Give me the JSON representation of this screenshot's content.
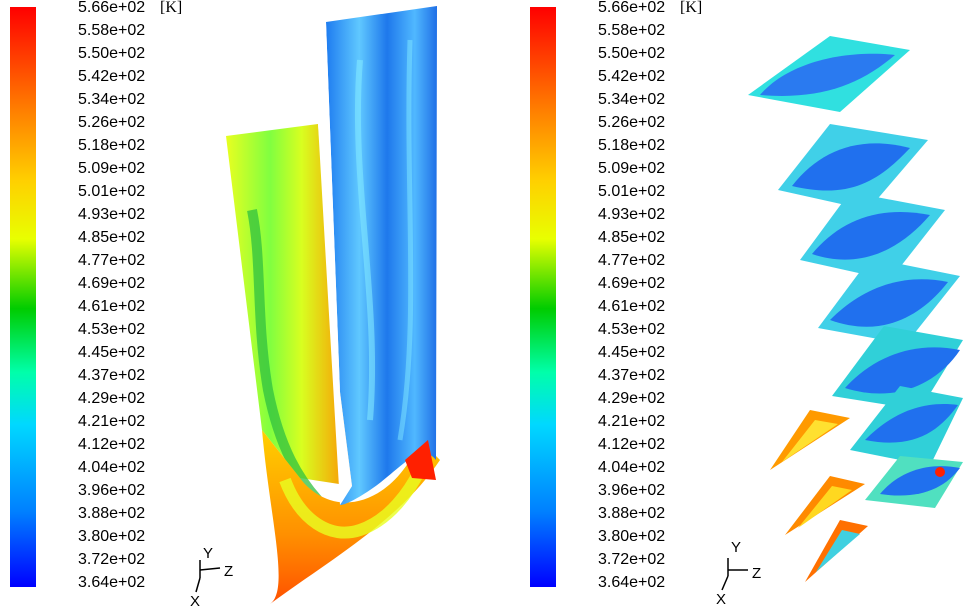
{
  "panels": [
    {
      "unit": "[K]",
      "ticks": [
        "5.66e+02",
        "5.58e+02",
        "5.50e+02",
        "5.42e+02",
        "5.34e+02",
        "5.26e+02",
        "5.18e+02",
        "5.09e+02",
        "5.01e+02",
        "4.93e+02",
        "4.85e+02",
        "4.77e+02",
        "4.69e+02",
        "4.61e+02",
        "4.53e+02",
        "4.45e+02",
        "4.37e+02",
        "4.29e+02",
        "4.21e+02",
        "4.12e+02",
        "4.04e+02",
        "3.96e+02",
        "3.88e+02",
        "3.80e+02",
        "3.72e+02",
        "3.64e+02"
      ],
      "axes": {
        "y": "Y",
        "z": "Z",
        "x": "X"
      }
    },
    {
      "unit": "[K]",
      "ticks": [
        "5.66e+02",
        "5.58e+02",
        "5.50e+02",
        "5.42e+02",
        "5.34e+02",
        "5.26e+02",
        "5.18e+02",
        "5.09e+02",
        "5.01e+02",
        "4.93e+02",
        "4.85e+02",
        "4.77e+02",
        "4.69e+02",
        "4.61e+02",
        "4.53e+02",
        "4.45e+02",
        "4.37e+02",
        "4.29e+02",
        "4.21e+02",
        "4.12e+02",
        "4.04e+02",
        "3.96e+02",
        "3.88e+02",
        "3.80e+02",
        "3.72e+02",
        "3.64e+02"
      ],
      "axes": {
        "y": "Y",
        "z": "Z",
        "x": "X"
      }
    }
  ],
  "colors": {
    "hot": "#ff0000",
    "warm": "#ffd000",
    "mid": "#00cc00",
    "cool": "#00d8ff",
    "cold": "#0000ff"
  }
}
